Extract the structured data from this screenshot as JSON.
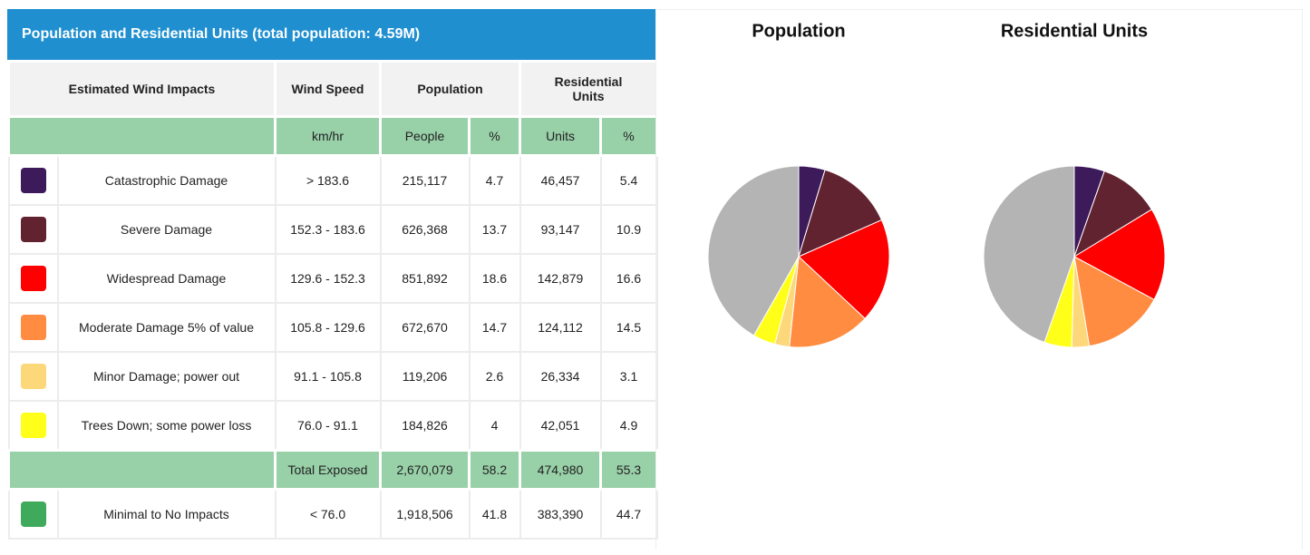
{
  "header": {
    "title": "Population and Residential Units (total population: 4.59M)"
  },
  "table": {
    "columns": [
      "Estimated Wind Impacts",
      "Wind Speed",
      "Population",
      "Residential Units"
    ],
    "subheader": [
      "km/hr",
      "People",
      "%",
      "Units",
      "%"
    ],
    "rows": [
      {
        "color": "#3d1a5a",
        "label": "Catastrophic Damage",
        "wind": "> 183.6",
        "people": "215,117",
        "people_pct": 4.7,
        "units": "46,457",
        "units_pct": 5.4
      },
      {
        "color": "#622331",
        "label": "Severe Damage",
        "wind": "152.3 - 183.6",
        "people": "626,368",
        "people_pct": 13.7,
        "units": "93,147",
        "units_pct": 10.9
      },
      {
        "color": "#ff0000",
        "label": "Widespread Damage",
        "wind": "129.6 - 152.3",
        "people": "851,892",
        "people_pct": 18.6,
        "units": "142,879",
        "units_pct": 16.6
      },
      {
        "color": "#ff8c40",
        "label": "Moderate Damage 5% of value",
        "wind": "105.8 - 129.6",
        "people": "672,670",
        "people_pct": 14.7,
        "units": "124,112",
        "units_pct": 14.5
      },
      {
        "color": "#fcd87a",
        "label": "Minor Damage; power out",
        "wind": "91.1 - 105.8",
        "people": "119,206",
        "people_pct": 2.6,
        "units": "26,334",
        "units_pct": 3.1
      },
      {
        "color": "#ffff1a",
        "label": "Trees Down; some power loss",
        "wind": "76.0 - 91.1",
        "people": "184,826",
        "people_pct": 4,
        "units": "42,051",
        "units_pct": 4.9
      },
      {
        "color": "#3fa95c",
        "chart_color": "#b4b4b4",
        "label": "Minimal to No Impacts",
        "wind": "< 76.0",
        "people": "1,918,506",
        "people_pct": 41.8,
        "units": "383,390",
        "units_pct": 44.7
      }
    ],
    "total": {
      "label": "Total Exposed",
      "people": "2,670,079",
      "people_pct": 58.2,
      "units": "474,980",
      "units_pct": 55.3
    }
  },
  "charts": [
    {
      "type": "pie",
      "title": "Population"
    },
    {
      "type": "pie",
      "title": "Residential Units"
    }
  ]
}
